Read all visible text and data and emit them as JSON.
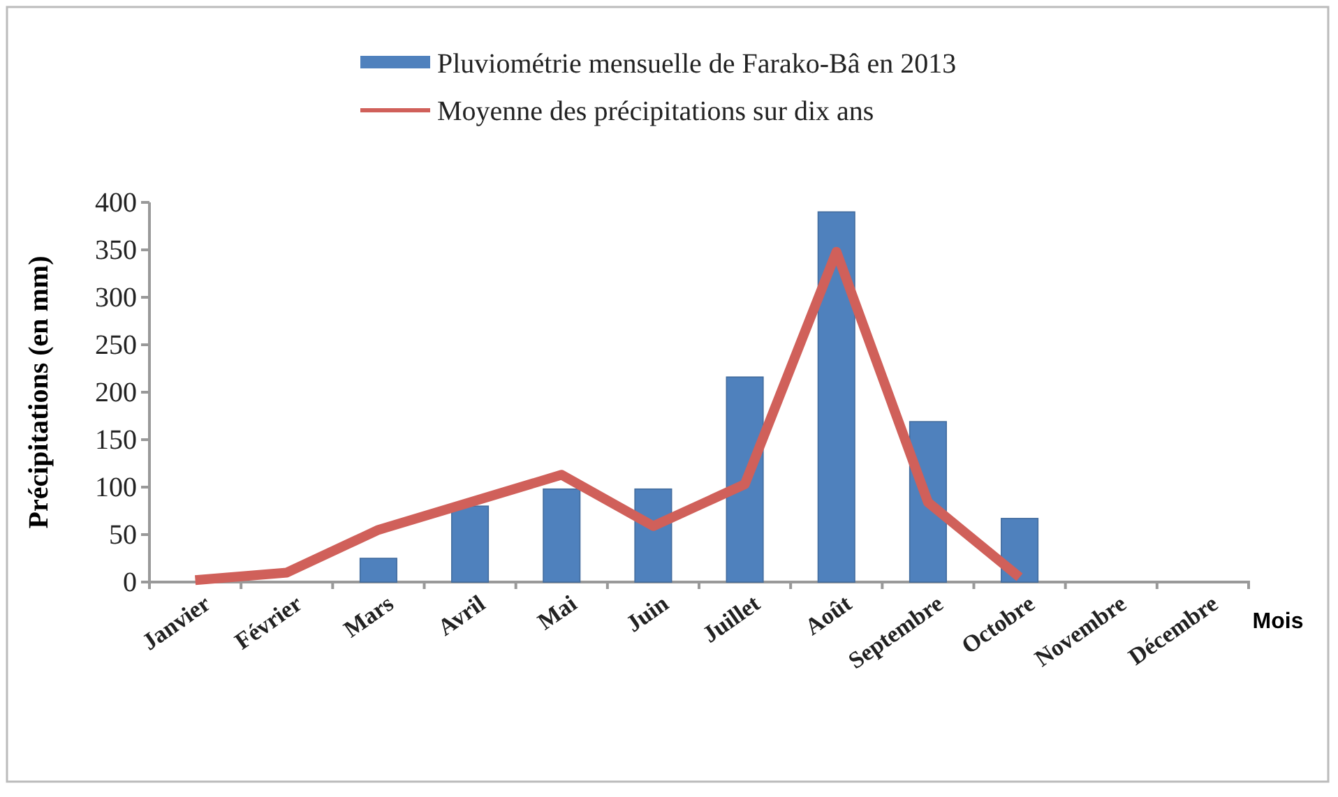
{
  "chart_data": {
    "type": "bar",
    "xlabel": "Mois",
    "ylabel": "Précipitations (en mm)",
    "categories": [
      "Janvier",
      "Février",
      "Mars",
      "Avril",
      "Mai",
      "Juin",
      "Juillet",
      "Août",
      "Septembre",
      "Octobre",
      "Novembre",
      "Décembre"
    ],
    "series": [
      {
        "name": "Pluviométrie mensuelle de Farako-Bâ en 2013",
        "color": "#4f81bd",
        "values": [
          0,
          0,
          25,
          80,
          98,
          98,
          216,
          390,
          169,
          67,
          0,
          0
        ]
      },
      {
        "name": "Moyenne des précipitations sur dix ans",
        "type": "line",
        "color": "#d0605a",
        "values": [
          2,
          10,
          55,
          84,
          113,
          59,
          103,
          348,
          84,
          5,
          null,
          null
        ]
      }
    ],
    "ylim": [
      0,
      400
    ],
    "yticks": [
      0,
      50,
      100,
      150,
      200,
      250,
      300,
      350,
      400
    ],
    "grid": false,
    "legend": "top",
    "marker": "none",
    "line_style": "solid"
  }
}
